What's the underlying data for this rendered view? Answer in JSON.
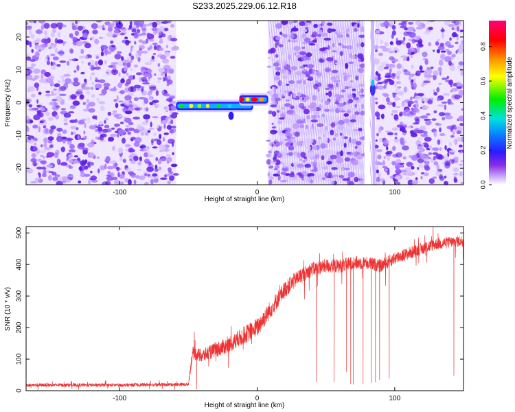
{
  "title": "S233.2025.229.06.12.R18",
  "colors": {
    "line": "#ee3333",
    "axis": "#000000"
  },
  "chart_data": [
    {
      "type": "heatmap",
      "xlabel": "Height of straight line (km)",
      "ylabel": "Frequency (Hz)",
      "xlim": [
        -168,
        150
      ],
      "ylim": [
        -25,
        25
      ],
      "xticks": [
        -100,
        0,
        100
      ],
      "xtick_labels": [
        "-100",
        "0",
        "100"
      ],
      "yticks": [
        -20,
        -10,
        0,
        10,
        20
      ],
      "ytick_labels": [
        "-20",
        "-10",
        "0",
        "10",
        "20"
      ],
      "colorbar": {
        "label": "Normalized spectral amplitude",
        "range": [
          0,
          0.95
        ],
        "ticks": [
          0,
          0.2,
          0.4,
          0.6,
          0.8
        ],
        "tick_labels": [
          "0.0",
          "0.2",
          "0.4",
          "0.6",
          "0.8"
        ],
        "colormap": "rainbow (white-violet-blue-cyan-green-yellow-orange-red-magenta)"
      },
      "regions": [
        {
          "x": [
            -168,
            -59
          ],
          "pattern": "dense speckle",
          "amplitude": [
            0.05,
            0.12
          ]
        },
        {
          "x": [
            -59,
            -3
          ],
          "pattern": "narrow band near 0 Hz",
          "freq": -1,
          "amplitude": [
            0.1,
            0.7
          ]
        },
        {
          "x": [
            -3,
            8
          ],
          "pattern": "narrow band near 0 Hz",
          "freq": 1,
          "amplitude": [
            0.3,
            0.95
          ]
        },
        {
          "x": [
            8,
            78
          ],
          "pattern": "diagonal fringes",
          "amplitude": [
            0.05,
            0.1
          ]
        },
        {
          "x": [
            82,
            86
          ],
          "pattern": "vertical streak with peak",
          "freq": 6,
          "amplitude": [
            0.2,
            0.3
          ]
        },
        {
          "x": [
            86,
            150
          ],
          "pattern": "dense speckle",
          "amplitude": [
            0.05,
            0.1
          ]
        }
      ]
    },
    {
      "type": "line",
      "xlabel": "Height of straight line (km)",
      "ylabel": "SNR (10 * v/v)",
      "xlim": [
        -168,
        150
      ],
      "ylim": [
        0,
        520
      ],
      "xticks": [
        -100,
        0,
        100
      ],
      "xtick_labels": [
        "-100",
        "0",
        "100"
      ],
      "yticks": [
        0,
        100,
        200,
        300,
        400,
        500
      ],
      "ytick_labels": [
        "0",
        "100",
        "200",
        "300",
        "400",
        "500"
      ],
      "series_color": "#ee3333",
      "profile": {
        "x": [
          -168,
          -100,
          -50,
          -47,
          -40,
          -30,
          -20,
          -10,
          0,
          10,
          20,
          30,
          40,
          50,
          60,
          70,
          80,
          90,
          100,
          110,
          120,
          130,
          140,
          150
        ],
        "y": [
          18,
          18,
          20,
          120,
          110,
          130,
          145,
          175,
          200,
          260,
          320,
          360,
          385,
          395,
          395,
          405,
          405,
          395,
          420,
          435,
          450,
          465,
          470,
          475
        ]
      },
      "noise_amplitude": {
        "x": [
          -168,
          -50,
          -47,
          0,
          40,
          150
        ],
        "y": [
          10,
          10,
          40,
          60,
          45,
          35
        ]
      },
      "dropouts": [
        {
          "x": -44,
          "y": 5
        },
        {
          "x": 43,
          "y": 28
        },
        {
          "x": 56,
          "y": 28
        },
        {
          "x": 65,
          "y": 60
        },
        {
          "x": 68,
          "y": 22
        },
        {
          "x": 70,
          "y": 20
        },
        {
          "x": 77,
          "y": 22
        },
        {
          "x": 83,
          "y": 25
        },
        {
          "x": 86,
          "y": 28
        },
        {
          "x": 89,
          "y": 35
        },
        {
          "x": 96,
          "y": 40
        },
        {
          "x": 143,
          "y": 48
        }
      ]
    }
  ]
}
